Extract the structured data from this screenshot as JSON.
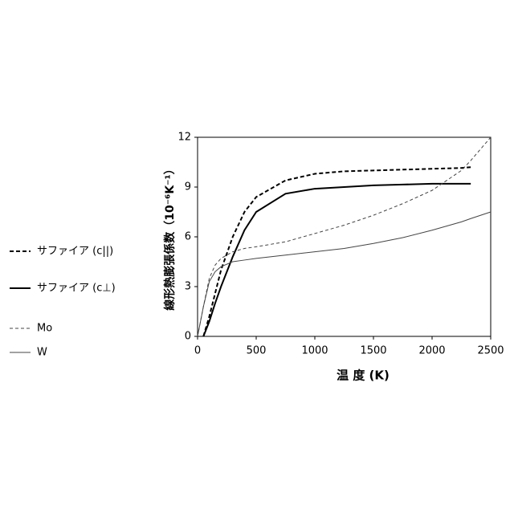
{
  "chart_data": {
    "type": "line",
    "xlabel": "温 度 (K)",
    "ylabel": "線形熱膨張係数（10⁻⁶K⁻¹）",
    "x": [
      0,
      50,
      100,
      150,
      200,
      300,
      400,
      500,
      750,
      1000,
      1250,
      1500,
      1750,
      2000,
      2250,
      2330,
      2500
    ],
    "series": [
      {
        "name": "サファイア (c||)",
        "color": "#000000",
        "dash": "dashed",
        "width": 2,
        "values": [
          null,
          0,
          1.2,
          2.6,
          4.0,
          6.0,
          7.5,
          8.4,
          9.4,
          9.8,
          9.95,
          10.0,
          10.05,
          10.1,
          10.15,
          10.2,
          null
        ]
      },
      {
        "name": "サファイア (c⊥)",
        "color": "#000000",
        "dash": "solid",
        "width": 2,
        "values": [
          null,
          0,
          0.9,
          2.0,
          3.0,
          4.8,
          6.4,
          7.5,
          8.6,
          8.9,
          9.0,
          9.1,
          9.15,
          9.2,
          9.2,
          9.2,
          null
        ]
      },
      {
        "name": "Mo",
        "color": "#444444",
        "dash": "dashed",
        "width": 1,
        "values": [
          0,
          1.8,
          3.5,
          4.3,
          4.7,
          5.1,
          5.3,
          5.4,
          5.7,
          6.2,
          6.7,
          7.3,
          8.0,
          8.8,
          10.0,
          10.6,
          12
        ]
      },
      {
        "name": "W",
        "color": "#444444",
        "dash": "solid",
        "width": 1,
        "values": [
          0,
          1.8,
          3.3,
          3.9,
          4.2,
          4.5,
          4.6,
          4.7,
          4.9,
          5.1,
          5.3,
          5.6,
          5.95,
          6.4,
          6.9,
          7.1,
          7.5
        ]
      }
    ],
    "xlim": [
      0,
      2500
    ],
    "xticks": [
      0,
      500,
      1000,
      1500,
      2000,
      2500
    ],
    "ylim": [
      0,
      12
    ],
    "yticks": [
      0,
      3,
      6,
      9,
      12
    ]
  }
}
